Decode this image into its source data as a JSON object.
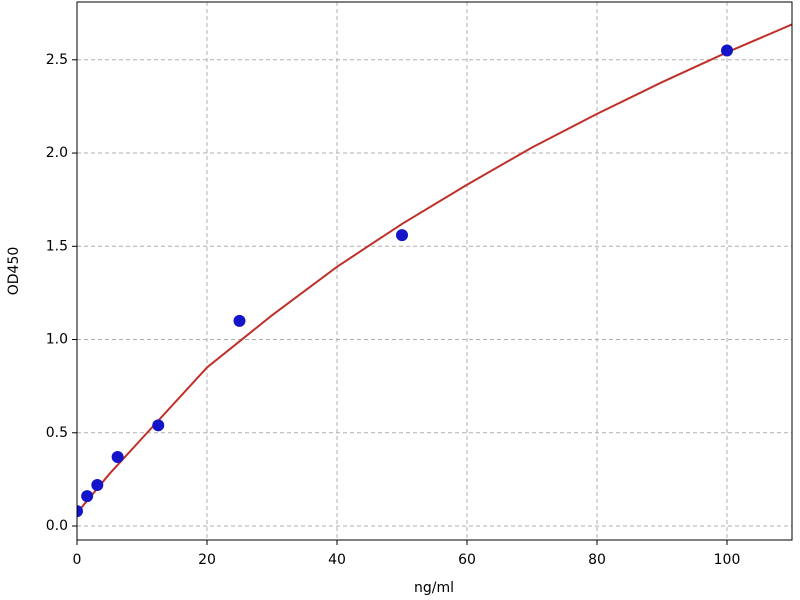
{
  "chart_data": {
    "type": "scatter",
    "xlabel": "ng/ml",
    "ylabel": "OD450",
    "xlim": [
      0,
      110
    ],
    "ylim": [
      -0.075,
      2.81
    ],
    "xticks": [
      0,
      20,
      40,
      60,
      80,
      100
    ],
    "yticks": [
      {
        "value": 0,
        "label": "0.0"
      },
      0.5,
      {
        "value": 1,
        "label": "1.0"
      },
      1.5,
      {
        "value": 2,
        "label": "2.0"
      },
      2.5
    ],
    "grid": true,
    "series": [
      {
        "mode": "line",
        "color": "#c0302a",
        "x": [
          0,
          5,
          10,
          20,
          30,
          40,
          50,
          60,
          70,
          80,
          90,
          100,
          110
        ],
        "values": [
          0.07,
          0.28,
          0.47,
          0.85,
          1.13,
          1.39,
          1.62,
          1.83,
          2.03,
          2.21,
          2.38,
          2.54,
          2.69
        ]
      },
      {
        "mode": "markers",
        "color": "#1414c8",
        "x": [
          0,
          1.5625,
          3.125,
          6.25,
          12.5,
          25,
          50,
          100
        ],
        "values": [
          0.08,
          0.16,
          0.22,
          0.37,
          0.54,
          1.1,
          1.56,
          2.55
        ]
      }
    ]
  }
}
